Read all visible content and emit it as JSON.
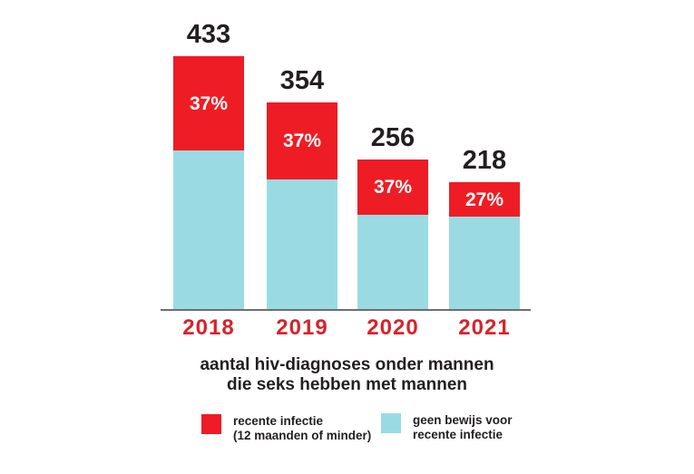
{
  "chart_data": {
    "type": "bar",
    "stacked": true,
    "categories": [
      "2018",
      "2019",
      "2020",
      "2021"
    ],
    "totals": [
      433,
      354,
      256,
      218
    ],
    "series": [
      {
        "name": "recente infectie (12 maanden of minder)",
        "pct_values": [
          37,
          37,
          37,
          27
        ],
        "pct_labels": [
          "37%",
          "37%",
          "37%",
          "27%"
        ],
        "color": "#ee1c25"
      },
      {
        "name": "geen bewijs voor recente infectie",
        "color": "#9adbe3"
      }
    ],
    "title": "aantal hiv-diagnoses onder mannen die seks hebben met mannen",
    "xlabel": "",
    "ylabel": "",
    "ylim": [
      0,
      433
    ],
    "grid": false,
    "legend_position": "bottom"
  },
  "caption": {
    "line1": "aantal hiv-diagnoses onder mannen",
    "line2": "die seks hebben met mannen"
  },
  "legend": {
    "items": [
      {
        "swatch_color": "#ee1c25",
        "line1": "recente infectie",
        "line2": "(12 maanden of minder)"
      },
      {
        "swatch_color": "#9adbe3",
        "line1": "geen bewijs voor",
        "line2": "recente infectie"
      }
    ]
  },
  "colors": {
    "recent": "#ee1c25",
    "no_evidence": "#9adbe3",
    "year_label": "#d8232a",
    "axis": "#6d6e71",
    "text": "#231f20",
    "pct_text": "#ffffff",
    "background": "#ffffff"
  }
}
